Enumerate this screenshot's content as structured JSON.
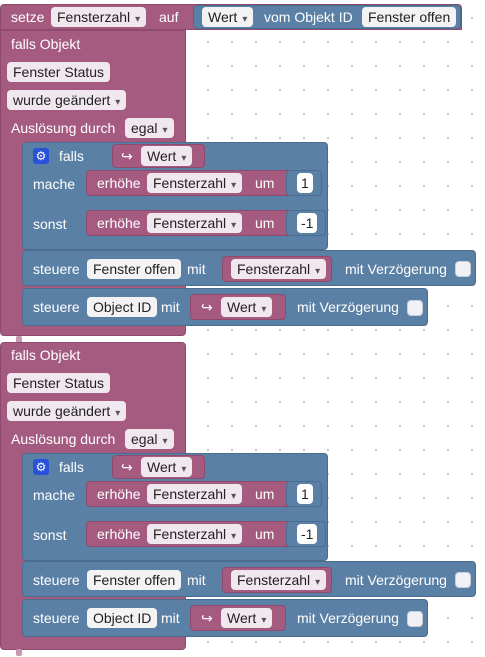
{
  "top_block": {
    "label": "setze",
    "variable": "Fensterzahl",
    "to_label": "auf",
    "value_dropdown": "Wert",
    "of_object_label": "vom Objekt ID",
    "object_id": "Fenster offen"
  },
  "handlers": [
    {
      "title": "falls Objekt",
      "object": "Fenster Status",
      "event": "wurde geändert",
      "trigger_label": "Auslösung durch",
      "trigger_value": "egal",
      "if_label": "falls",
      "if_value": "Wert",
      "then_label": "mache",
      "then_action": "erhöhe",
      "then_var": "Fensterzahl",
      "by_label": "um",
      "then_amount": "1",
      "else_label": "sonst",
      "else_action": "erhöhe",
      "else_var": "Fensterzahl",
      "else_amount": "-1",
      "control1_label": "steuere",
      "control1_target": "Fenster offen",
      "control1_with": "mit",
      "control1_value": "Fensterzahl",
      "control1_delay_label": "mit Verzögerung",
      "control2_label": "steuere",
      "control2_target": "Object ID",
      "control2_with": "mit",
      "control2_value": "Wert",
      "control2_delay_label": "mit Verzögerung"
    },
    {
      "title": "falls Objekt",
      "object": "Fenster Status",
      "event": "wurde geändert",
      "trigger_label": "Auslösung durch",
      "trigger_value": "egal",
      "if_label": "falls",
      "if_value": "Wert",
      "then_label": "mache",
      "then_action": "erhöhe",
      "then_var": "Fensterzahl",
      "by_label": "um",
      "then_amount": "1",
      "else_label": "sonst",
      "else_action": "erhöhe",
      "else_var": "Fensterzahl",
      "else_amount": "-1",
      "control1_label": "steuere",
      "control1_target": "Fenster offen",
      "control1_with": "mit",
      "control1_value": "Fensterzahl",
      "control1_delay_label": "mit Verzögerung",
      "control2_label": "steuere",
      "control2_target": "Object ID",
      "control2_with": "mit",
      "control2_value": "Wert",
      "control2_delay_label": "mit Verzögerung"
    }
  ],
  "icons": {
    "gear": "gear-icon",
    "arrow": "return-arrow-icon",
    "dropdown": "dropdown-arrow-icon",
    "checkbox": "checkbox-icon"
  },
  "colors": {
    "event_block": "#a55b80",
    "logic_block": "#5b80a5",
    "field_bg": "#f1e7ee",
    "gear_bg": "#2a51d9"
  }
}
